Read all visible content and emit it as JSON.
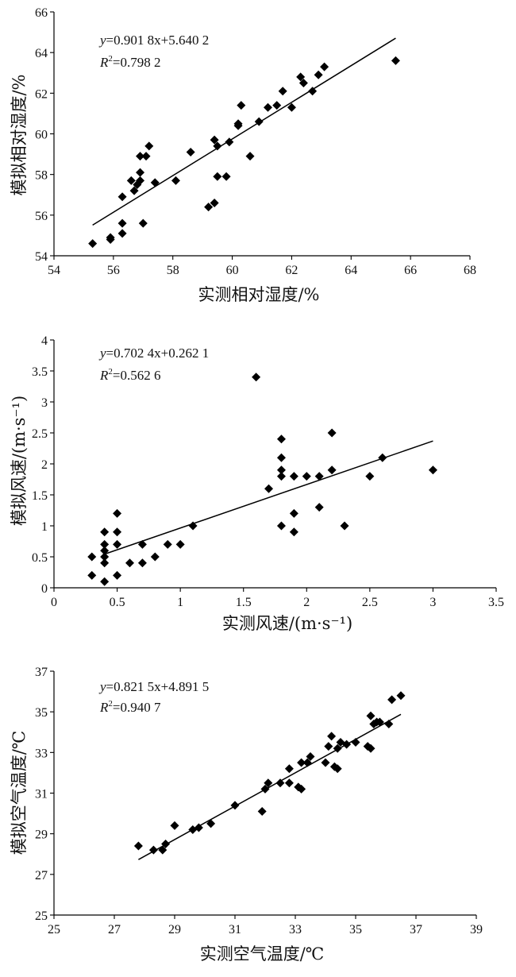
{
  "chart_data": [
    {
      "type": "scatter",
      "xlabel": "实测相对湿度/%",
      "ylabel": "模拟相对湿度/%",
      "xlim": [
        54,
        68
      ],
      "ylim": [
        54,
        66
      ],
      "xticks": [
        "54",
        "56",
        "58",
        "60",
        "62",
        "64",
        "66",
        "68"
      ],
      "yticks": [
        "54",
        "56",
        "58",
        "60",
        "62",
        "64",
        "66"
      ],
      "equation": {
        "y": "y",
        "rhs": "=0.901 8x+5.640 2",
        "r": "R",
        "sup": "2",
        "rrhs": "=0.798 2"
      },
      "fit": {
        "slope": 0.9018,
        "intercept": 5.6402,
        "x_range": [
          55.3,
          65.5
        ]
      },
      "points": [
        [
          55.3,
          54.6
        ],
        [
          55.9,
          54.8
        ],
        [
          55.9,
          54.9
        ],
        [
          56.3,
          55.1
        ],
        [
          56.3,
          55.6
        ],
        [
          56.3,
          56.9
        ],
        [
          56.6,
          57.7
        ],
        [
          56.7,
          57.2
        ],
        [
          56.8,
          57.5
        ],
        [
          56.9,
          57.7
        ],
        [
          56.9,
          58.1
        ],
        [
          56.9,
          58.9
        ],
        [
          57.0,
          55.6
        ],
        [
          57.1,
          58.9
        ],
        [
          57.2,
          59.4
        ],
        [
          57.4,
          57.6
        ],
        [
          58.1,
          57.7
        ],
        [
          58.6,
          59.1
        ],
        [
          59.2,
          56.4
        ],
        [
          59.4,
          56.6
        ],
        [
          59.4,
          59.7
        ],
        [
          59.5,
          59.4
        ],
        [
          59.5,
          57.9
        ],
        [
          59.8,
          57.9
        ],
        [
          59.9,
          59.6
        ],
        [
          60.2,
          60.4
        ],
        [
          60.2,
          60.5
        ],
        [
          60.3,
          61.4
        ],
        [
          60.6,
          58.9
        ],
        [
          60.9,
          60.6
        ],
        [
          61.2,
          61.3
        ],
        [
          61.5,
          61.4
        ],
        [
          61.7,
          62.1
        ],
        [
          62.0,
          61.3
        ],
        [
          62.3,
          62.8
        ],
        [
          62.4,
          62.5
        ],
        [
          62.7,
          62.1
        ],
        [
          62.9,
          62.9
        ],
        [
          63.1,
          63.3
        ],
        [
          65.5,
          63.6
        ]
      ]
    },
    {
      "type": "scatter",
      "xlabel": "实测风速/(m·s⁻¹)",
      "ylabel": "模拟风速/(m·s⁻¹)",
      "xlim": [
        0,
        3.5
      ],
      "ylim": [
        0,
        4
      ],
      "xticks": [
        "0",
        "0.5",
        "1",
        "1.5",
        "2",
        "2.5",
        "3",
        "3.5"
      ],
      "yticks": [
        "0",
        "0.5",
        "1",
        "1.5",
        "2",
        "2.5",
        "3",
        "3.5",
        "4"
      ],
      "equation": {
        "y": "y",
        "rhs": "=0.702 4x+0.262 1",
        "r": "R",
        "sup": "2",
        "rrhs": "=0.562 6"
      },
      "fit": {
        "slope": 0.7024,
        "intercept": 0.2621,
        "x_range": [
          0.4,
          3.0
        ]
      },
      "points": [
        [
          0.3,
          0.2
        ],
        [
          0.3,
          0.5
        ],
        [
          0.4,
          0.1
        ],
        [
          0.4,
          0.4
        ],
        [
          0.4,
          0.5
        ],
        [
          0.4,
          0.6
        ],
        [
          0.4,
          0.7
        ],
        [
          0.4,
          0.9
        ],
        [
          0.5,
          0.2
        ],
        [
          0.5,
          0.7
        ],
        [
          0.5,
          0.9
        ],
        [
          0.5,
          1.2
        ],
        [
          0.6,
          0.4
        ],
        [
          0.7,
          0.4
        ],
        [
          0.7,
          0.7
        ],
        [
          0.8,
          0.5
        ],
        [
          0.9,
          0.7
        ],
        [
          1.0,
          0.7
        ],
        [
          1.1,
          1.0
        ],
        [
          1.6,
          3.4
        ],
        [
          1.7,
          1.6
        ],
        [
          1.8,
          1.0
        ],
        [
          1.8,
          1.8
        ],
        [
          1.8,
          1.9
        ],
        [
          1.8,
          2.1
        ],
        [
          1.8,
          2.4
        ],
        [
          1.9,
          0.9
        ],
        [
          1.9,
          1.2
        ],
        [
          1.9,
          1.8
        ],
        [
          2.0,
          1.8
        ],
        [
          2.1,
          1.3
        ],
        [
          2.1,
          1.8
        ],
        [
          2.2,
          1.9
        ],
        [
          2.2,
          2.5
        ],
        [
          2.3,
          1.0
        ],
        [
          2.5,
          1.8
        ],
        [
          2.6,
          2.1
        ],
        [
          3.0,
          1.9
        ]
      ]
    },
    {
      "type": "scatter",
      "xlabel": "实测空气温度/℃",
      "ylabel": "模拟空气温度/℃",
      "xlim": [
        25,
        39
      ],
      "ylim": [
        25,
        37
      ],
      "xticks": [
        "25",
        "27",
        "29",
        "31",
        "33",
        "35",
        "37",
        "39"
      ],
      "yticks": [
        "25",
        "27",
        "29",
        "31",
        "33",
        "35",
        "37"
      ],
      "equation": {
        "y": "y",
        "rhs": "=0.821 5x+4.891 5",
        "r": "R",
        "sup": "2",
        "rrhs": "=0.940 7"
      },
      "fit": {
        "slope": 0.8215,
        "intercept": 4.8915,
        "x_range": [
          27.8,
          36.5
        ]
      },
      "points": [
        [
          27.8,
          28.4
        ],
        [
          28.3,
          28.2
        ],
        [
          28.6,
          28.2
        ],
        [
          28.7,
          28.5
        ],
        [
          29.0,
          29.4
        ],
        [
          29.6,
          29.2
        ],
        [
          29.8,
          29.3
        ],
        [
          30.2,
          29.5
        ],
        [
          31.0,
          30.4
        ],
        [
          31.9,
          30.1
        ],
        [
          32.0,
          31.2
        ],
        [
          32.1,
          31.5
        ],
        [
          32.5,
          31.5
        ],
        [
          32.8,
          32.2
        ],
        [
          32.8,
          31.5
        ],
        [
          33.1,
          31.3
        ],
        [
          33.2,
          31.2
        ],
        [
          33.2,
          32.5
        ],
        [
          33.4,
          32.5
        ],
        [
          33.5,
          32.8
        ],
        [
          34.0,
          32.5
        ],
        [
          34.1,
          33.3
        ],
        [
          34.2,
          33.8
        ],
        [
          34.3,
          32.3
        ],
        [
          34.4,
          32.2
        ],
        [
          34.4,
          33.2
        ],
        [
          34.5,
          33.5
        ],
        [
          34.7,
          33.4
        ],
        [
          35.0,
          33.5
        ],
        [
          35.4,
          33.3
        ],
        [
          35.5,
          33.2
        ],
        [
          35.5,
          34.8
        ],
        [
          35.6,
          34.4
        ],
        [
          35.7,
          34.5
        ],
        [
          35.8,
          34.5
        ],
        [
          36.1,
          34.4
        ],
        [
          36.2,
          35.6
        ],
        [
          36.5,
          35.8
        ]
      ]
    }
  ]
}
